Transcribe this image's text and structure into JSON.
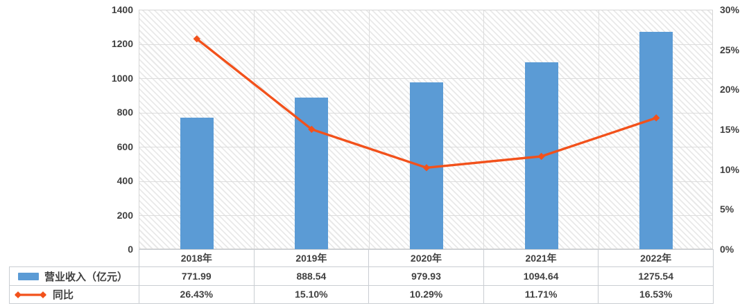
{
  "chart_data": {
    "type": "bar+line",
    "categories": [
      "2018年",
      "2019年",
      "2020年",
      "2021年",
      "2022年"
    ],
    "series": [
      {
        "name": "营业收入（亿元）",
        "type": "bar",
        "axis": "left",
        "color": "#5B9BD5",
        "values": [
          771.99,
          888.54,
          979.93,
          1094.64,
          1275.54
        ],
        "labels": [
          "771.99",
          "888.54",
          "979.93",
          "1094.64",
          "1275.54"
        ]
      },
      {
        "name": "同比",
        "type": "line",
        "axis": "right",
        "color": "#F2511B",
        "marker": "diamond",
        "values": [
          26.43,
          15.1,
          10.29,
          11.71,
          16.53
        ],
        "labels": [
          "26.43%",
          "15.10%",
          "10.29%",
          "11.71%",
          "16.53%"
        ]
      }
    ],
    "left_axis": {
      "min": 0,
      "max": 1400,
      "step": 200,
      "ticks": [
        "1400",
        "1200",
        "1000",
        "800",
        "600",
        "400",
        "200",
        "0"
      ]
    },
    "right_axis": {
      "min": 0,
      "max": 30,
      "step": 5,
      "ticks": [
        "30%",
        "25%",
        "20%",
        "15%",
        "10%",
        "5%",
        "0%"
      ]
    },
    "grid": true,
    "plot_background": "diagonal-hatch",
    "legend_position": "data-table-left",
    "colors": {
      "bar": "#5B9BD5",
      "line": "#F2511B",
      "text": "#404040",
      "gridline": "#DCDCDC",
      "table_border": "#C9CDD2",
      "hatch": "#E9E9E9"
    }
  }
}
